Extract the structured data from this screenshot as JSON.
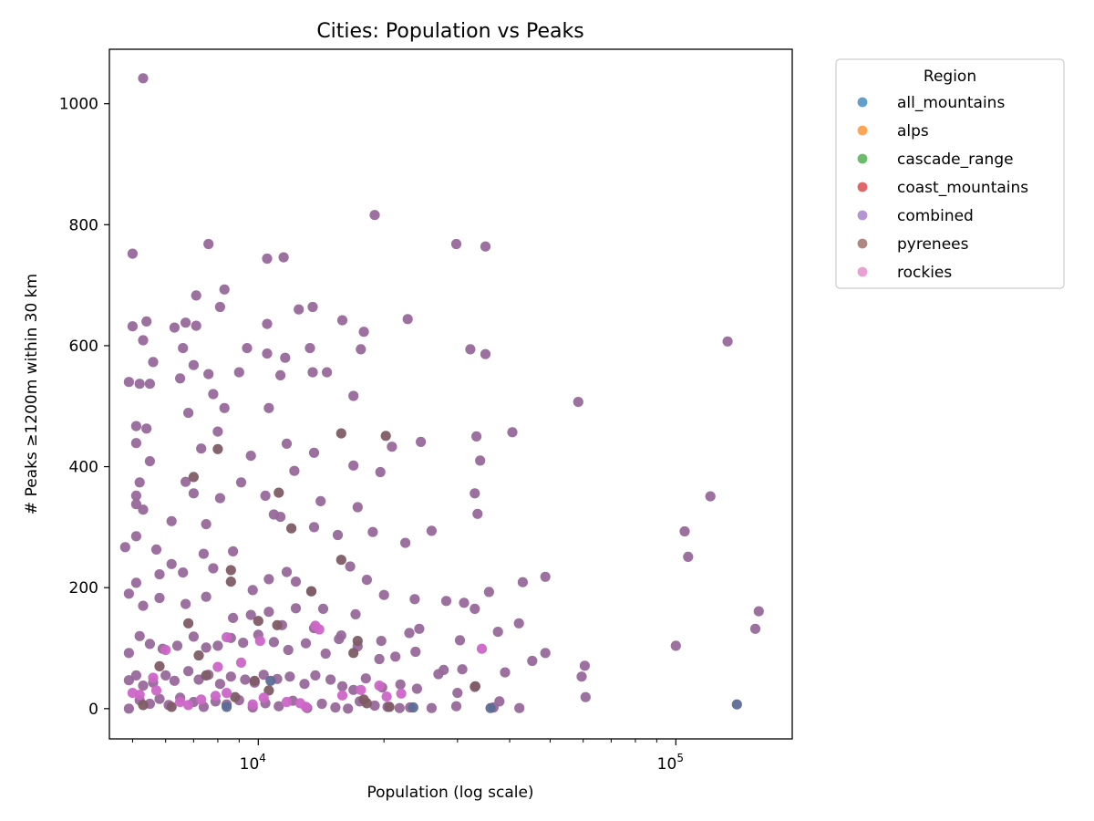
{
  "chart_data": {
    "type": "scatter",
    "title": "Cities: Population vs Peaks",
    "xlabel": "Population (log scale)",
    "ylabel": "# Peaks ≥1200m within 30 km",
    "x_scale": "log",
    "xlim": [
      4400,
      190000
    ],
    "ylim": [
      -50,
      1090
    ],
    "x_ticks": [
      {
        "value": 10000,
        "base": "10",
        "exp": "4"
      },
      {
        "value": 100000,
        "base": "10",
        "exp": "5"
      }
    ],
    "y_ticks": [
      0,
      200,
      400,
      600,
      800,
      1000
    ],
    "grid": false,
    "legend": {
      "title": "Region",
      "placement": "outside-right",
      "entries": [
        {
          "name": "all_mountains",
          "color": "#1f77b4"
        },
        {
          "name": "alps",
          "color": "#ff7f0e"
        },
        {
          "name": "cascade_range",
          "color": "#2ca02c"
        },
        {
          "name": "coast_mountains",
          "color": "#d62728"
        },
        {
          "name": "combined",
          "color": "#9467bd"
        },
        {
          "name": "pyrenees",
          "color": "#8c564b"
        },
        {
          "name": "rockies",
          "color": "#e377c2"
        }
      ]
    },
    "series": [
      {
        "region": "combined",
        "color": "#97689a",
        "points": [
          [
            5300,
            1042
          ],
          [
            5000,
            752
          ],
          [
            7600,
            768
          ],
          [
            19000,
            816
          ],
          [
            8300,
            693
          ],
          [
            7100,
            683
          ],
          [
            10500,
            744
          ],
          [
            11500,
            746
          ],
          [
            5000,
            632
          ],
          [
            5400,
            640
          ],
          [
            6300,
            630
          ],
          [
            6700,
            638
          ],
          [
            7100,
            633
          ],
          [
            8100,
            664
          ],
          [
            10500,
            636
          ],
          [
            12500,
            660
          ],
          [
            13500,
            664
          ],
          [
            5300,
            609
          ],
          [
            5600,
            573
          ],
          [
            6600,
            596
          ],
          [
            7000,
            568
          ],
          [
            7600,
            553
          ],
          [
            9400,
            596
          ],
          [
            10500,
            587
          ],
          [
            11600,
            580
          ],
          [
            13300,
            596
          ],
          [
            14600,
            556
          ],
          [
            15900,
            642
          ],
          [
            17600,
            594
          ],
          [
            17900,
            623
          ],
          [
            22800,
            644
          ],
          [
            29800,
            768
          ],
          [
            35000,
            764
          ],
          [
            32200,
            594
          ],
          [
            35000,
            586
          ],
          [
            4900,
            540
          ],
          [
            5200,
            537
          ],
          [
            5500,
            537
          ],
          [
            6500,
            546
          ],
          [
            7800,
            520
          ],
          [
            8300,
            497
          ],
          [
            9000,
            556
          ],
          [
            10600,
            497
          ],
          [
            11300,
            551
          ],
          [
            13500,
            556
          ],
          [
            16900,
            517
          ],
          [
            58400,
            507
          ],
          [
            133000,
            607
          ],
          [
            5100,
            467
          ],
          [
            5400,
            463
          ],
          [
            5100,
            439
          ],
          [
            5500,
            409
          ],
          [
            6800,
            489
          ],
          [
            7300,
            430
          ],
          [
            8000,
            458
          ],
          [
            9600,
            418
          ],
          [
            11700,
            438
          ],
          [
            13600,
            423
          ],
          [
            16900,
            402
          ],
          [
            19600,
            391
          ],
          [
            20900,
            433
          ],
          [
            24500,
            441
          ],
          [
            33300,
            450
          ],
          [
            34000,
            410
          ],
          [
            40600,
            457
          ],
          [
            5200,
            374
          ],
          [
            5100,
            352
          ],
          [
            5100,
            338
          ],
          [
            4800,
            267
          ],
          [
            5100,
            285
          ],
          [
            5300,
            329
          ],
          [
            5700,
            263
          ],
          [
            6200,
            310
          ],
          [
            6700,
            375
          ],
          [
            7000,
            356
          ],
          [
            7500,
            305
          ],
          [
            8100,
            348
          ],
          [
            9100,
            374
          ],
          [
            10400,
            352
          ],
          [
            10900,
            321
          ],
          [
            11300,
            317
          ],
          [
            12200,
            393
          ],
          [
            13600,
            300
          ],
          [
            14100,
            343
          ],
          [
            15500,
            287
          ],
          [
            17300,
            333
          ],
          [
            18800,
            292
          ],
          [
            22500,
            274
          ],
          [
            26000,
            294
          ],
          [
            33000,
            356
          ],
          [
            33500,
            322
          ],
          [
            105000,
            293
          ],
          [
            107000,
            251
          ],
          [
            121000,
            351
          ],
          [
            5100,
            208
          ],
          [
            5800,
            222
          ],
          [
            6200,
            239
          ],
          [
            6600,
            225
          ],
          [
            7400,
            256
          ],
          [
            7800,
            232
          ],
          [
            8700,
            260
          ],
          [
            9700,
            196
          ],
          [
            10600,
            214
          ],
          [
            11700,
            226
          ],
          [
            12300,
            210
          ],
          [
            13400,
            194
          ],
          [
            16600,
            235
          ],
          [
            18200,
            213
          ],
          [
            20000,
            188
          ],
          [
            23700,
            181
          ],
          [
            28200,
            178
          ],
          [
            31100,
            175
          ],
          [
            33000,
            165
          ],
          [
            35700,
            193
          ],
          [
            43000,
            209
          ],
          [
            48700,
            218
          ],
          [
            4900,
            190
          ],
          [
            5300,
            170
          ],
          [
            5800,
            183
          ],
          [
            6700,
            173
          ],
          [
            7500,
            185
          ],
          [
            8700,
            150
          ],
          [
            9600,
            155
          ],
          [
            10600,
            160
          ],
          [
            11400,
            138
          ],
          [
            12300,
            166
          ],
          [
            13600,
            133
          ],
          [
            14300,
            165
          ],
          [
            15800,
            121
          ],
          [
            17100,
            156
          ],
          [
            19700,
            112
          ],
          [
            23000,
            125
          ],
          [
            24300,
            132
          ],
          [
            30400,
            113
          ],
          [
            37500,
            127
          ],
          [
            42100,
            141
          ],
          [
            158000,
            161
          ],
          [
            155000,
            132
          ],
          [
            4900,
            92
          ],
          [
            5200,
            120
          ],
          [
            5500,
            107
          ],
          [
            5900,
            99
          ],
          [
            6400,
            104
          ],
          [
            7000,
            119
          ],
          [
            7500,
            101
          ],
          [
            8000,
            104
          ],
          [
            8600,
            117
          ],
          [
            9200,
            109
          ],
          [
            10000,
            122
          ],
          [
            10900,
            110
          ],
          [
            11800,
            97
          ],
          [
            13000,
            108
          ],
          [
            14500,
            91
          ],
          [
            15600,
            115
          ],
          [
            17300,
            103
          ],
          [
            19500,
            82
          ],
          [
            21300,
            86
          ],
          [
            23800,
            94
          ],
          [
            27800,
            64
          ],
          [
            30800,
            65
          ],
          [
            39000,
            60
          ],
          [
            45300,
            79
          ],
          [
            48700,
            92
          ],
          [
            100000,
            104
          ],
          [
            60500,
            71
          ],
          [
            59500,
            53
          ],
          [
            60800,
            19
          ],
          [
            4900,
            47
          ],
          [
            5100,
            55
          ],
          [
            5300,
            38
          ],
          [
            5600,
            43
          ],
          [
            6000,
            55
          ],
          [
            6300,
            46
          ],
          [
            6800,
            62
          ],
          [
            7200,
            48
          ],
          [
            7600,
            56
          ],
          [
            8100,
            41
          ],
          [
            8600,
            53
          ],
          [
            9300,
            48
          ],
          [
            9800,
            43
          ],
          [
            10300,
            56
          ],
          [
            11100,
            49
          ],
          [
            11900,
            53
          ],
          [
            12900,
            41
          ],
          [
            13700,
            55
          ],
          [
            14900,
            48
          ],
          [
            15900,
            37
          ],
          [
            16900,
            31
          ],
          [
            18100,
            50
          ],
          [
            19800,
            35
          ],
          [
            21900,
            40
          ],
          [
            24000,
            33
          ],
          [
            27000,
            57
          ],
          [
            30000,
            26
          ],
          [
            33000,
            36
          ],
          [
            4900,
            0
          ],
          [
            5200,
            14
          ],
          [
            5500,
            8
          ],
          [
            5800,
            16
          ],
          [
            6100,
            6
          ],
          [
            6500,
            18
          ],
          [
            7000,
            11
          ],
          [
            7400,
            3
          ],
          [
            7900,
            12
          ],
          [
            8400,
            7
          ],
          [
            9000,
            14
          ],
          [
            9700,
            2
          ],
          [
            10400,
            9
          ],
          [
            11200,
            4
          ],
          [
            12100,
            13
          ],
          [
            13100,
            1
          ],
          [
            14200,
            8
          ],
          [
            15300,
            2
          ],
          [
            16400,
            0
          ],
          [
            17500,
            12
          ],
          [
            19000,
            5
          ],
          [
            20400,
            3
          ],
          [
            21800,
            1
          ],
          [
            23100,
            2
          ],
          [
            26000,
            1
          ],
          [
            29800,
            4
          ],
          [
            36600,
            2
          ],
          [
            37800,
            12
          ],
          [
            42200,
            1
          ]
        ]
      },
      {
        "region": "pyrenees",
        "color": "#7e5c65",
        "points": [
          [
            15800,
            455
          ],
          [
            20200,
            451
          ],
          [
            8000,
            429
          ],
          [
            7000,
            383
          ],
          [
            11200,
            357
          ],
          [
            12000,
            298
          ],
          [
            8600,
            229
          ],
          [
            8600,
            210
          ],
          [
            15800,
            246
          ],
          [
            10000,
            145
          ],
          [
            11100,
            138
          ],
          [
            6800,
            141
          ],
          [
            13400,
            194
          ],
          [
            17300,
            112
          ],
          [
            16900,
            92
          ],
          [
            7200,
            88
          ],
          [
            5800,
            70
          ],
          [
            7500,
            55
          ],
          [
            8800,
            19
          ],
          [
            9800,
            46
          ],
          [
            10600,
            30
          ],
          [
            17900,
            15
          ],
          [
            18200,
            9
          ],
          [
            20600,
            3
          ],
          [
            33100,
            37
          ],
          [
            6200,
            3
          ],
          [
            5300,
            6
          ]
        ]
      },
      {
        "region": "rockies",
        "color": "#cc66c7",
        "points": [
          [
            5000,
            26
          ],
          [
            5200,
            23
          ],
          [
            5700,
            30
          ],
          [
            6500,
            11
          ],
          [
            6800,
            6
          ],
          [
            7300,
            15
          ],
          [
            7900,
            21
          ],
          [
            8400,
            26
          ],
          [
            9700,
            7
          ],
          [
            10300,
            18
          ],
          [
            11700,
            11
          ],
          [
            13000,
            3
          ],
          [
            14000,
            131
          ],
          [
            13700,
            137
          ],
          [
            8400,
            118
          ],
          [
            10100,
            112
          ],
          [
            34300,
            99
          ],
          [
            19500,
            38
          ],
          [
            20300,
            20
          ],
          [
            22000,
            25
          ],
          [
            17600,
            31
          ],
          [
            15900,
            22
          ],
          [
            5600,
            51
          ],
          [
            6000,
            97
          ],
          [
            8000,
            69
          ],
          [
            9100,
            76
          ],
          [
            12600,
            9
          ]
        ]
      },
      {
        "region": "all_mountains",
        "color": "#5c6d96",
        "points": [
          [
            140000,
            7
          ],
          [
            36000,
            1
          ],
          [
            10700,
            46
          ],
          [
            23500,
            2
          ],
          [
            8400,
            3
          ]
        ]
      }
    ]
  }
}
